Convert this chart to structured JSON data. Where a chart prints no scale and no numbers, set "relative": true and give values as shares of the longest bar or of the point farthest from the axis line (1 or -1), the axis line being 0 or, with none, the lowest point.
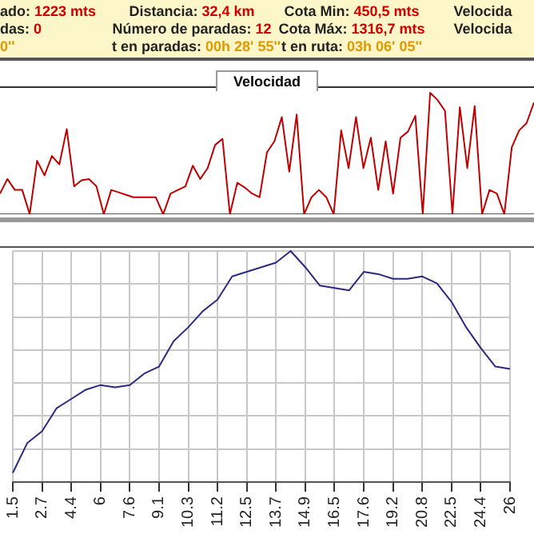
{
  "chart_data": [
    {
      "type": "other",
      "annotations": [
        "ado: 1223 mts",
        "Distancia: 32,4 km",
        "Cota Min: 450,5 mts",
        "Velocida",
        "das: 0",
        "Número de paradas: 12",
        "Cota Máx: 1316,7 mts",
        "Velocida",
        "0''",
        "t en paradas: 00h 28' 55''",
        "t en ruta: 03h 06' 05''"
      ]
    },
    {
      "type": "line",
      "title": "Velocidad",
      "relative": true,
      "color": "#c00000",
      "categories": [
        null,
        null,
        null,
        null,
        null,
        null,
        null,
        null,
        null,
        null,
        null,
        null,
        null,
        null,
        null,
        null,
        null,
        null,
        null,
        null,
        null,
        null,
        null,
        null,
        null,
        null,
        null,
        null,
        null,
        null,
        null,
        null,
        null,
        null,
        null,
        null,
        null,
        null,
        null,
        null,
        null,
        null,
        null,
        null,
        null,
        null,
        null,
        null,
        null,
        null,
        null,
        null,
        null,
        null,
        null,
        null,
        null,
        null,
        null,
        null,
        null,
        null,
        null,
        null,
        null,
        null,
        null,
        null,
        null,
        null,
        null,
        null,
        null
      ],
      "values": [
        0.17,
        0.29,
        0.2,
        0.2,
        0,
        0.44,
        0.32,
        0.48,
        0.41,
        0.7,
        0.23,
        0.28,
        0.29,
        0.23,
        0,
        0.2,
        0.18,
        0.16,
        0.14,
        0.14,
        0.14,
        0.14,
        0,
        0.17,
        0.2,
        0.23,
        0.4,
        0.29,
        0.38,
        0.57,
        0.62,
        0,
        0.26,
        0.22,
        0.17,
        0.14,
        0.51,
        0.6,
        0.8,
        0.35,
        0.82,
        0,
        0.14,
        0.2,
        0.14,
        0,
        0.69,
        0.38,
        0.8,
        0.38,
        0.63,
        0.2,
        0.6,
        0.17,
        0.63,
        0.68,
        0.81,
        0,
        1,
        0.94,
        0.85,
        0,
        0.88,
        0.38,
        0.89,
        0,
        0.2,
        0.17,
        0,
        0.55,
        0.69,
        0.75,
        0.92
      ]
    },
    {
      "type": "line",
      "relative": true,
      "grid": true,
      "color": "#2a2a80",
      "categories": [
        "1.5",
        null,
        "2.7",
        null,
        "4.4",
        null,
        "6",
        null,
        "7.6",
        null,
        "9.1",
        null,
        "10.3",
        null,
        "11.2",
        null,
        "12.5",
        null,
        "13.7",
        null,
        "14.9",
        null,
        "16.5",
        null,
        "17.6",
        null,
        "19.2",
        null,
        "20.8",
        null,
        "22.5",
        null,
        "24.4",
        null,
        "26"
      ],
      "values": [
        0.04,
        0.17,
        0.22,
        0.32,
        0.36,
        0.4,
        0.42,
        0.41,
        0.42,
        0.47,
        0.5,
        0.61,
        0.67,
        0.74,
        0.79,
        0.89,
        0.91,
        0.93,
        0.95,
        1,
        0.93,
        0.85,
        0.84,
        0.83,
        0.91,
        0.9,
        0.88,
        0.88,
        0.89,
        0.86,
        0.78,
        0.67,
        0.58,
        0.5,
        0.49
      ]
    }
  ]
}
